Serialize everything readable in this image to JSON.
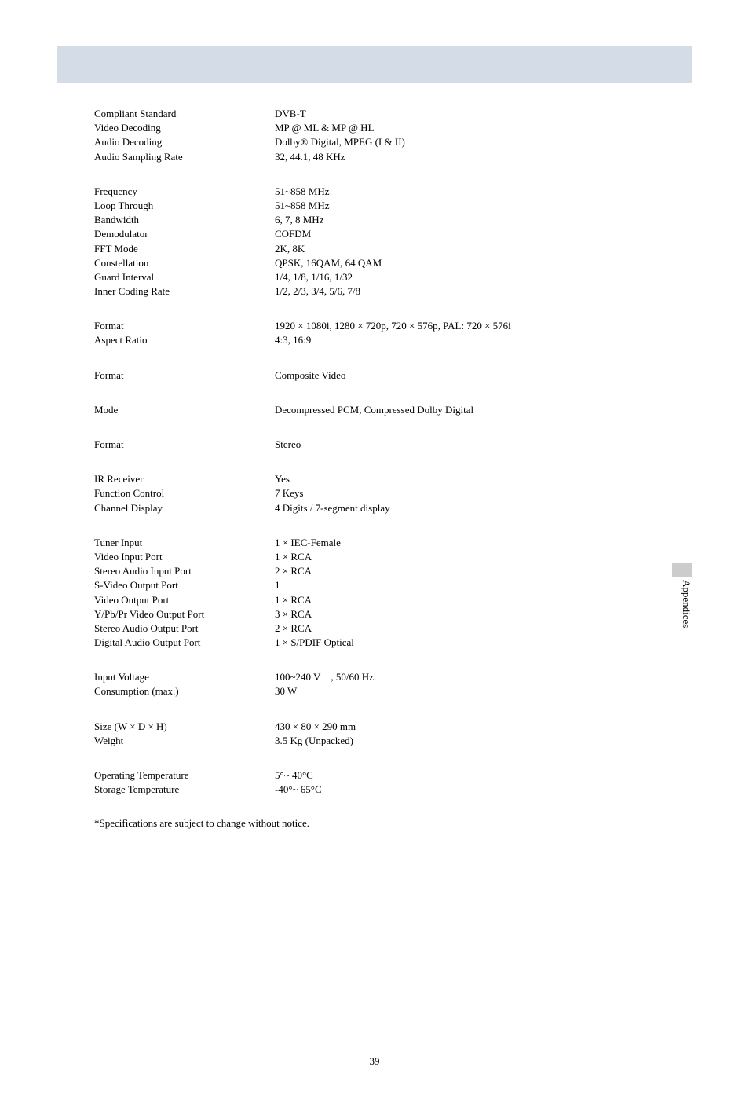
{
  "sections": [
    {
      "rows": [
        {
          "label": "Compliant Standard",
          "value": "DVB-T"
        },
        {
          "label": "Video Decoding",
          "value": "MP @ ML & MP @ HL"
        },
        {
          "label": "Audio Decoding",
          "value": "Dolby® Digital, MPEG (I & II)"
        },
        {
          "label": "Audio Sampling Rate",
          "value": "32, 44.1, 48 KHz"
        }
      ]
    },
    {
      "rows": [
        {
          "label": "Frequency",
          "value": "51~858 MHz"
        },
        {
          "label": "Loop Through",
          "value": "51~858 MHz"
        },
        {
          "label": "Bandwidth",
          "value": "6, 7, 8 MHz"
        },
        {
          "label": "Demodulator",
          "value": "COFDM"
        },
        {
          "label": "FFT Mode",
          "value": "2K, 8K"
        },
        {
          "label": "Constellation",
          "value": "QPSK, 16QAM, 64 QAM"
        },
        {
          "label": "Guard Interval",
          "value": "1/4, 1/8, 1/16, 1/32"
        },
        {
          "label": "Inner Coding Rate",
          "value": "1/2, 2/3, 3/4, 5/6, 7/8"
        }
      ]
    },
    {
      "rows": [
        {
          "label": "Format",
          "value": "1920 × 1080i, 1280 × 720p, 720 × 576p, PAL: 720 × 576i"
        },
        {
          "label": "Aspect Ratio",
          "value": "4:3, 16:9"
        }
      ]
    },
    {
      "rows": [
        {
          "label": "Format",
          "value": "Composite Video"
        }
      ]
    },
    {
      "rows": [
        {
          "label": "Mode",
          "value": "Decompressed PCM, Compressed Dolby Digital"
        }
      ]
    },
    {
      "rows": [
        {
          "label": "Format",
          "value": "Stereo"
        }
      ]
    },
    {
      "rows": [
        {
          "label": "IR Receiver",
          "value": "Yes"
        },
        {
          "label": "Function Control",
          "value": "7 Keys"
        },
        {
          "label": "Channel Display",
          "value": "4 Digits / 7-segment display"
        }
      ]
    },
    {
      "rows": [
        {
          "label": "Tuner Input",
          "value": "1 × IEC-Female"
        },
        {
          "label": "Video Input Port",
          "value": "1 × RCA"
        },
        {
          "label": "Stereo Audio Input Port",
          "value": "2 × RCA"
        },
        {
          "label": "S-Video Output Port",
          "value": "1"
        },
        {
          "label": "Video Output Port",
          "value": "1 × RCA"
        },
        {
          "label": "Y/Pb/Pr Video Output Port",
          "value": "3 × RCA"
        },
        {
          "label": "Stereo Audio Output Port",
          "value": "2 × RCA"
        },
        {
          "label": "Digital Audio Output Port",
          "value": "1 × S/PDIF Optical"
        }
      ]
    },
    {
      "rows": [
        {
          "label": "Input Voltage",
          "value": "100~240 V , 50/60 Hz"
        },
        {
          "label": "Consumption (max.)",
          "value": "30 W"
        }
      ]
    },
    {
      "rows": [
        {
          "label": "Size (W × D × H)",
          "value": "430 × 80 × 290 mm"
        },
        {
          "label": "Weight",
          "value": "3.5 Kg (Unpacked)"
        }
      ]
    },
    {
      "rows": [
        {
          "label": "Operating Temperature",
          "value": "5°~ 40°C"
        },
        {
          "label": "Storage Temperature",
          "value": "-40°~ 65°C"
        }
      ]
    }
  ],
  "footnote": "*Specifications are subject to change without notice.",
  "sideTab": "Appendices",
  "pageNumber": "39"
}
